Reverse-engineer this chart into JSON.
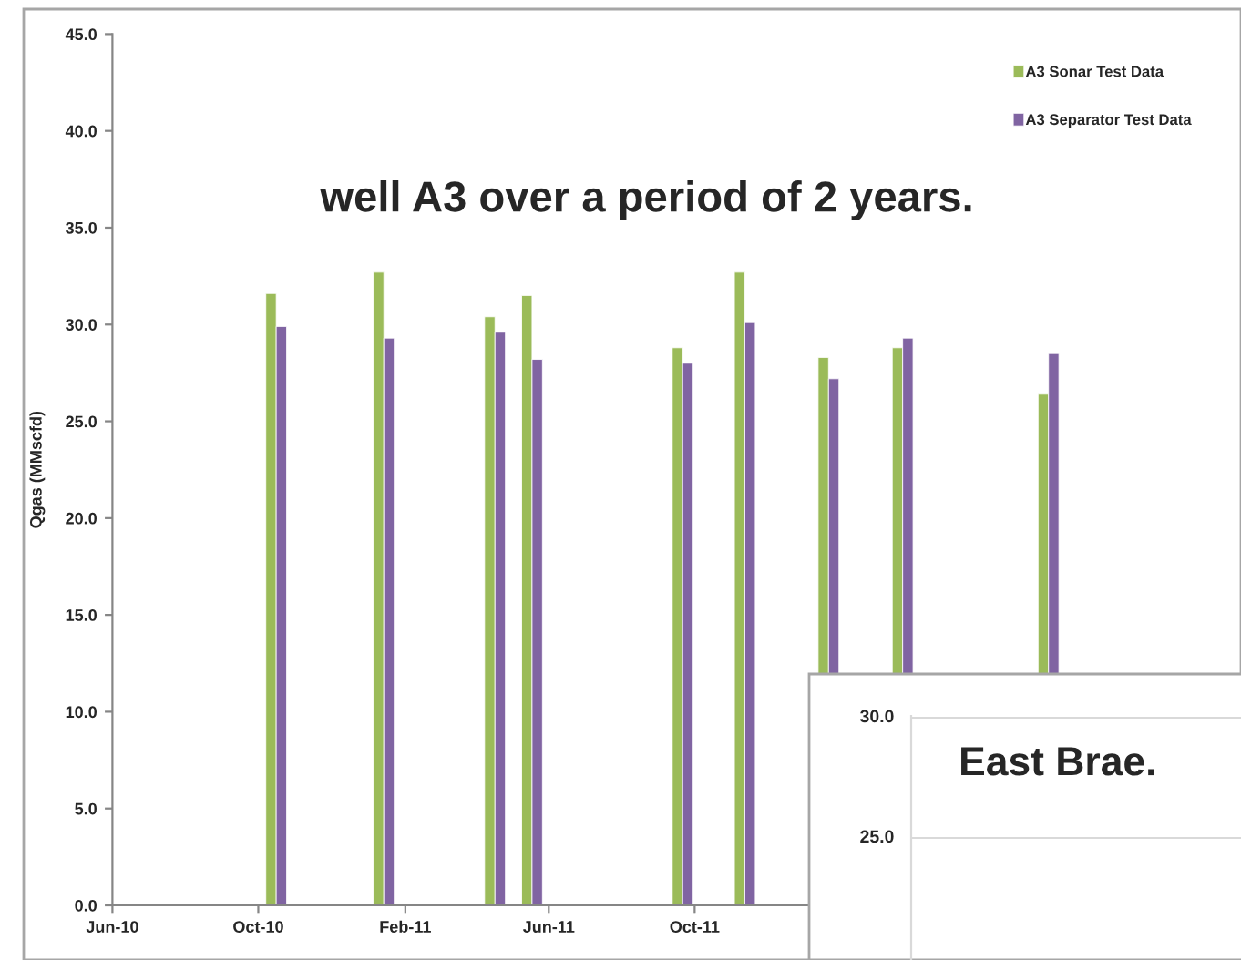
{
  "chart_data": [
    {
      "type": "bar",
      "ylabel": "Qgas (MMscfd)",
      "annotations": [
        "well A3 over a period of 2 years."
      ],
      "x": [
        "2010-10-16",
        "2011-01-14",
        "2011-04-17",
        "2011-05-18",
        "2011-09-21",
        "2011-11-12",
        "2012-01-21",
        "2012-03-23",
        "2012-07-23"
      ],
      "series": [
        {
          "name": "A3 Sonar Test Data",
          "color": "#9bbb59",
          "values": [
            31.6,
            32.7,
            30.4,
            31.5,
            28.8,
            32.7,
            28.3,
            28.8,
            26.4
          ]
        },
        {
          "name": "A3 Separator Test Data",
          "color": "#8064a2",
          "values": [
            29.9,
            29.3,
            29.6,
            28.2,
            28.0,
            30.1,
            27.2,
            29.3,
            28.5
          ]
        }
      ],
      "xlim": [
        "2010-06-01",
        "2012-12-01"
      ],
      "xticks": [
        {
          "value": "2010-06-01",
          "label": "Jun-10"
        },
        {
          "value": "2010-10-01",
          "label": "Oct-10"
        },
        {
          "value": "2011-02-01",
          "label": "Feb-11"
        },
        {
          "value": "2011-06-01",
          "label": "Jun-11"
        },
        {
          "value": "2011-10-01",
          "label": "Oct-11"
        }
      ],
      "ylim": [
        0,
        45
      ],
      "yticks": [
        {
          "value": 0,
          "label": "0.0"
        },
        {
          "value": 5,
          "label": "5.0"
        },
        {
          "value": 10,
          "label": "10.0"
        },
        {
          "value": 15,
          "label": "15.0"
        },
        {
          "value": 20,
          "label": "20.0"
        },
        {
          "value": 25,
          "label": "25.0"
        },
        {
          "value": 30,
          "label": "30.0"
        },
        {
          "value": 35,
          "label": "35.0"
        },
        {
          "value": 40,
          "label": "40.0"
        },
        {
          "value": 45,
          "label": "45.0"
        }
      ],
      "legend": "top right",
      "grid": false
    },
    {
      "type": "other",
      "title": "East Brae.",
      "annotations": [
        "30.0",
        "25.0"
      ]
    }
  ]
}
